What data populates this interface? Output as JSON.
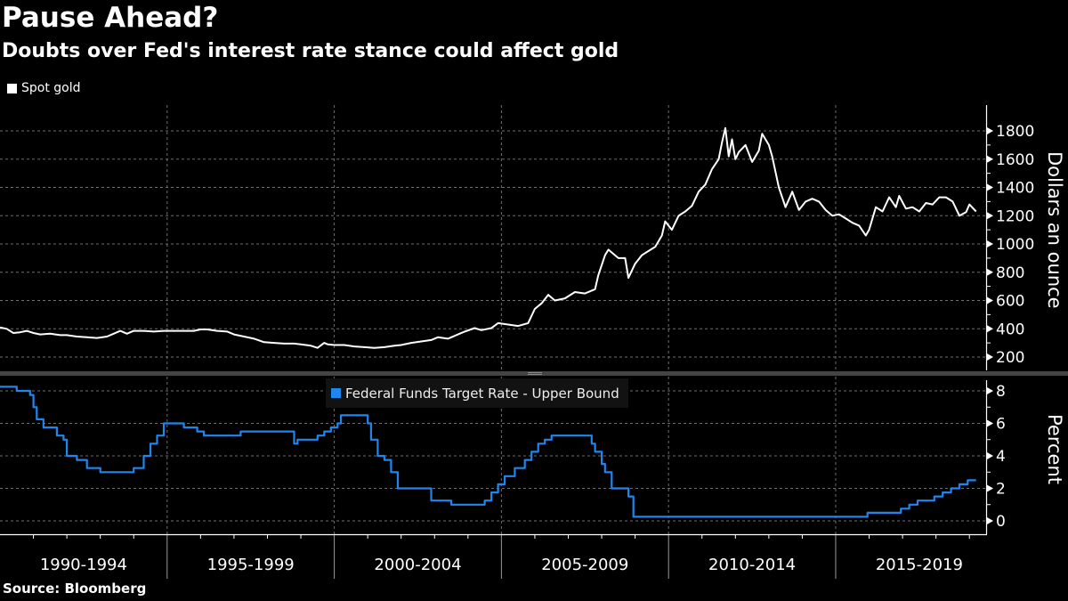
{
  "header": {
    "title": "Pause Ahead?",
    "subtitle": "Doubts over Fed's interest rate stance could affect gold"
  },
  "footer": {
    "source": "Source: Bloomberg"
  },
  "colors": {
    "gold_line": "#ffffff",
    "fed_line": "#1f86ee",
    "background": "#000000",
    "grid": "#6e6e6e"
  },
  "chart_data": [
    {
      "type": "line",
      "title": "Spot gold",
      "legend": [
        "Spot gold"
      ],
      "legend_position": "top-left",
      "ylabel": "Dollars an ounce",
      "ylim": [
        100,
        1900
      ],
      "yticks": [
        200,
        400,
        600,
        800,
        1000,
        1200,
        1400,
        1600,
        1800
      ],
      "xlim": [
        1990.0,
        2019.5
      ],
      "grid": true,
      "series": [
        {
          "name": "Spot gold",
          "x": [
            1990.0,
            1990.2,
            1990.4,
            1990.6,
            1990.8,
            1991.0,
            1991.2,
            1991.5,
            1991.8,
            1992.0,
            1992.3,
            1992.6,
            1992.9,
            1993.2,
            1993.4,
            1993.6,
            1993.8,
            1994.0,
            1994.3,
            1994.6,
            1994.9,
            1995.2,
            1995.5,
            1995.8,
            1996.0,
            1996.2,
            1996.5,
            1996.8,
            1997.0,
            1997.3,
            1997.6,
            1997.9,
            1998.2,
            1998.5,
            1998.8,
            1999.0,
            1999.3,
            1999.5,
            1999.7,
            1999.8,
            2000.0,
            2000.3,
            2000.6,
            2000.9,
            2001.2,
            2001.5,
            2001.8,
            2002.0,
            2002.3,
            2002.6,
            2002.9,
            2003.1,
            2003.4,
            2003.7,
            2003.9,
            2004.2,
            2004.4,
            2004.7,
            2004.9,
            2005.2,
            2005.5,
            2005.8,
            2006.0,
            2006.2,
            2006.4,
            2006.6,
            2006.9,
            2007.2,
            2007.5,
            2007.8,
            2007.9,
            2008.1,
            2008.2,
            2008.5,
            2008.7,
            2008.8,
            2009.0,
            2009.2,
            2009.4,
            2009.6,
            2009.8,
            2009.9,
            2010.1,
            2010.3,
            2010.5,
            2010.7,
            2010.9,
            2011.1,
            2011.3,
            2011.5,
            2011.6,
            2011.7,
            2011.8,
            2011.9,
            2012.0,
            2012.1,
            2012.3,
            2012.5,
            2012.7,
            2012.8,
            2013.0,
            2013.1,
            2013.3,
            2013.5,
            2013.7,
            2013.9,
            2014.1,
            2014.3,
            2014.5,
            2014.7,
            2014.9,
            2015.1,
            2015.3,
            2015.5,
            2015.7,
            2015.9,
            2016.0,
            2016.2,
            2016.4,
            2016.6,
            2016.8,
            2016.9,
            2017.1,
            2017.3,
            2017.5,
            2017.7,
            2017.9,
            2018.1,
            2018.3,
            2018.5,
            2018.7,
            2018.9,
            2019.0,
            2019.2
          ],
          "y": [
            410,
            400,
            370,
            375,
            385,
            370,
            360,
            365,
            355,
            355,
            345,
            340,
            335,
            345,
            365,
            385,
            365,
            385,
            385,
            380,
            385,
            385,
            385,
            385,
            395,
            395,
            385,
            380,
            360,
            345,
            330,
            305,
            300,
            295,
            295,
            290,
            280,
            265,
            300,
            290,
            285,
            285,
            275,
            270,
            265,
            270,
            280,
            285,
            300,
            310,
            320,
            340,
            330,
            360,
            380,
            405,
            390,
            405,
            440,
            430,
            420,
            440,
            540,
            580,
            640,
            600,
            615,
            660,
            650,
            680,
            780,
            920,
            960,
            900,
            900,
            760,
            860,
            920,
            950,
            980,
            1060,
            1160,
            1100,
            1200,
            1230,
            1270,
            1370,
            1420,
            1530,
            1600,
            1720,
            1820,
            1620,
            1740,
            1600,
            1650,
            1700,
            1580,
            1660,
            1780,
            1700,
            1620,
            1400,
            1260,
            1370,
            1240,
            1300,
            1320,
            1300,
            1240,
            1200,
            1210,
            1180,
            1150,
            1130,
            1060,
            1100,
            1260,
            1230,
            1330,
            1260,
            1340,
            1250,
            1260,
            1230,
            1290,
            1280,
            1330,
            1330,
            1300,
            1200,
            1225,
            1280,
            1230
          ],
          "peak": {
            "x": 2011.7,
            "y": 1820
          },
          "last": 1230
        }
      ]
    },
    {
      "type": "line",
      "title": "Federal Funds Target Rate - Upper Bound",
      "legend": [
        "Federal Funds Target Rate - Upper Bound"
      ],
      "legend_position": "top-center",
      "ylabel": "Percent",
      "ylim": [
        -0.5,
        9
      ],
      "yticks": [
        0,
        2,
        4,
        6,
        8
      ],
      "xlim": [
        1990.0,
        2019.5
      ],
      "xticks": [
        "1990-1994",
        "1995-1999",
        "2000-2004",
        "2005-2009",
        "2010-2014",
        "2015-2019"
      ],
      "grid": true,
      "series": [
        {
          "name": "Federal Funds Target Rate - Upper Bound",
          "step": true,
          "x": [
            1990.0,
            1990.5,
            1990.9,
            1991.0,
            1991.1,
            1991.3,
            1991.7,
            1991.9,
            1992.0,
            1992.3,
            1992.6,
            1993.0,
            1994.0,
            1994.3,
            1994.5,
            1994.7,
            1994.9,
            1995.1,
            1995.5,
            1995.9,
            1996.1,
            1997.2,
            1998.8,
            1998.9,
            1999.5,
            1999.7,
            1999.9,
            2000.1,
            2000.2,
            2000.4,
            2001.0,
            2001.1,
            2001.3,
            2001.5,
            2001.7,
            2001.9,
            2002.9,
            2003.5,
            2004.5,
            2004.7,
            2004.9,
            2005.1,
            2005.4,
            2005.7,
            2005.9,
            2006.1,
            2006.3,
            2006.5,
            2007.7,
            2007.8,
            2008.0,
            2008.1,
            2008.3,
            2008.8,
            2008.95,
            2015.95,
            2016.95,
            2017.2,
            2017.45,
            2017.95,
            2018.2,
            2018.45,
            2018.7,
            2018.95,
            2019.2
          ],
          "y": [
            8.25,
            8.0,
            7.75,
            7.0,
            6.25,
            5.75,
            5.25,
            5.0,
            4.0,
            3.75,
            3.25,
            3.0,
            3.25,
            4.0,
            4.75,
            5.25,
            6.0,
            6.0,
            5.75,
            5.5,
            5.25,
            5.5,
            4.75,
            5.0,
            5.25,
            5.5,
            5.75,
            6.0,
            6.5,
            6.5,
            6.0,
            5.0,
            4.0,
            3.75,
            3.0,
            2.0,
            1.25,
            1.0,
            1.25,
            1.75,
            2.25,
            2.75,
            3.25,
            3.75,
            4.25,
            4.75,
            5.0,
            5.25,
            4.75,
            4.25,
            3.5,
            3.0,
            2.0,
            1.5,
            0.25,
            0.5,
            0.75,
            1.0,
            1.25,
            1.5,
            1.75,
            2.0,
            2.25,
            2.5,
            2.5
          ],
          "last": 2.5
        }
      ]
    }
  ]
}
